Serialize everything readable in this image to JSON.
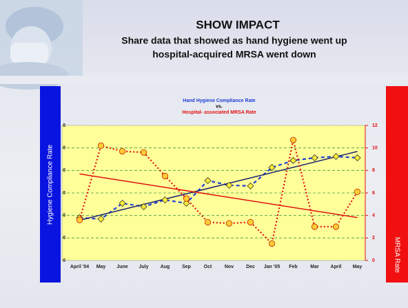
{
  "header": {
    "title": "SHOW IMPACT",
    "subtitle_lines": [
      "Share data that showed as hand hygiene went up",
      "hospital-acquired MRSA went down"
    ]
  },
  "chart_data": {
    "type": "line",
    "title_lines": [
      {
        "text": "Hand Hygiene Compliance Rate",
        "color": "#1f3fd6"
      },
      {
        "text": "vs.",
        "color": "#000000"
      },
      {
        "text": "Hospital- associated MRSA Rate",
        "color": "#e01010"
      }
    ],
    "y_label": "Hygiene Compliance Rate",
    "y2_label": "MRSA Rate",
    "categories": [
      "April '04",
      "May",
      "June",
      "July",
      "Aug",
      "Sep",
      "Oct",
      "Nov",
      "Dec",
      "Jan '05",
      "Feb",
      "Mar",
      "April",
      "May"
    ],
    "series": [
      {
        "color": "#1f3fd6",
        "marker": "diamond",
        "trend_color": "#1a1f6e",
        "values": [
          59.0,
          58.4,
          65.4,
          63.9,
          66.9,
          65.4,
          75.5,
          73.4,
          73.1,
          81.3,
          84.4,
          85.6,
          86.2,
          85.6
        ]
      },
      {
        "color": "#e01010",
        "marker": "circle",
        "axis": "y2",
        "trend_color": "#e01010",
        "values": [
          3.6,
          10.2,
          9.7,
          9.6,
          7.5,
          5.5,
          3.4,
          3.3,
          3.4,
          1.5,
          10.7,
          3.0,
          3.0,
          6.1
        ]
      }
    ],
    "ylim": [
      40,
      100
    ],
    "yticks": [
      {
        "value": 40,
        "label": "0"
      },
      {
        "value": 50,
        "label": "0"
      },
      {
        "value": 60,
        "label": "0"
      },
      {
        "value": 70,
        "label": "0"
      },
      {
        "value": 80,
        "label": "0"
      },
      {
        "value": 90,
        "label": "0"
      },
      {
        "value": 100,
        "label": "0"
      }
    ],
    "y2lim": [
      0,
      12
    ],
    "y2ticks": [
      0,
      2,
      4,
      6,
      8,
      10,
      12
    ],
    "grid": true,
    "trendline": true
  }
}
